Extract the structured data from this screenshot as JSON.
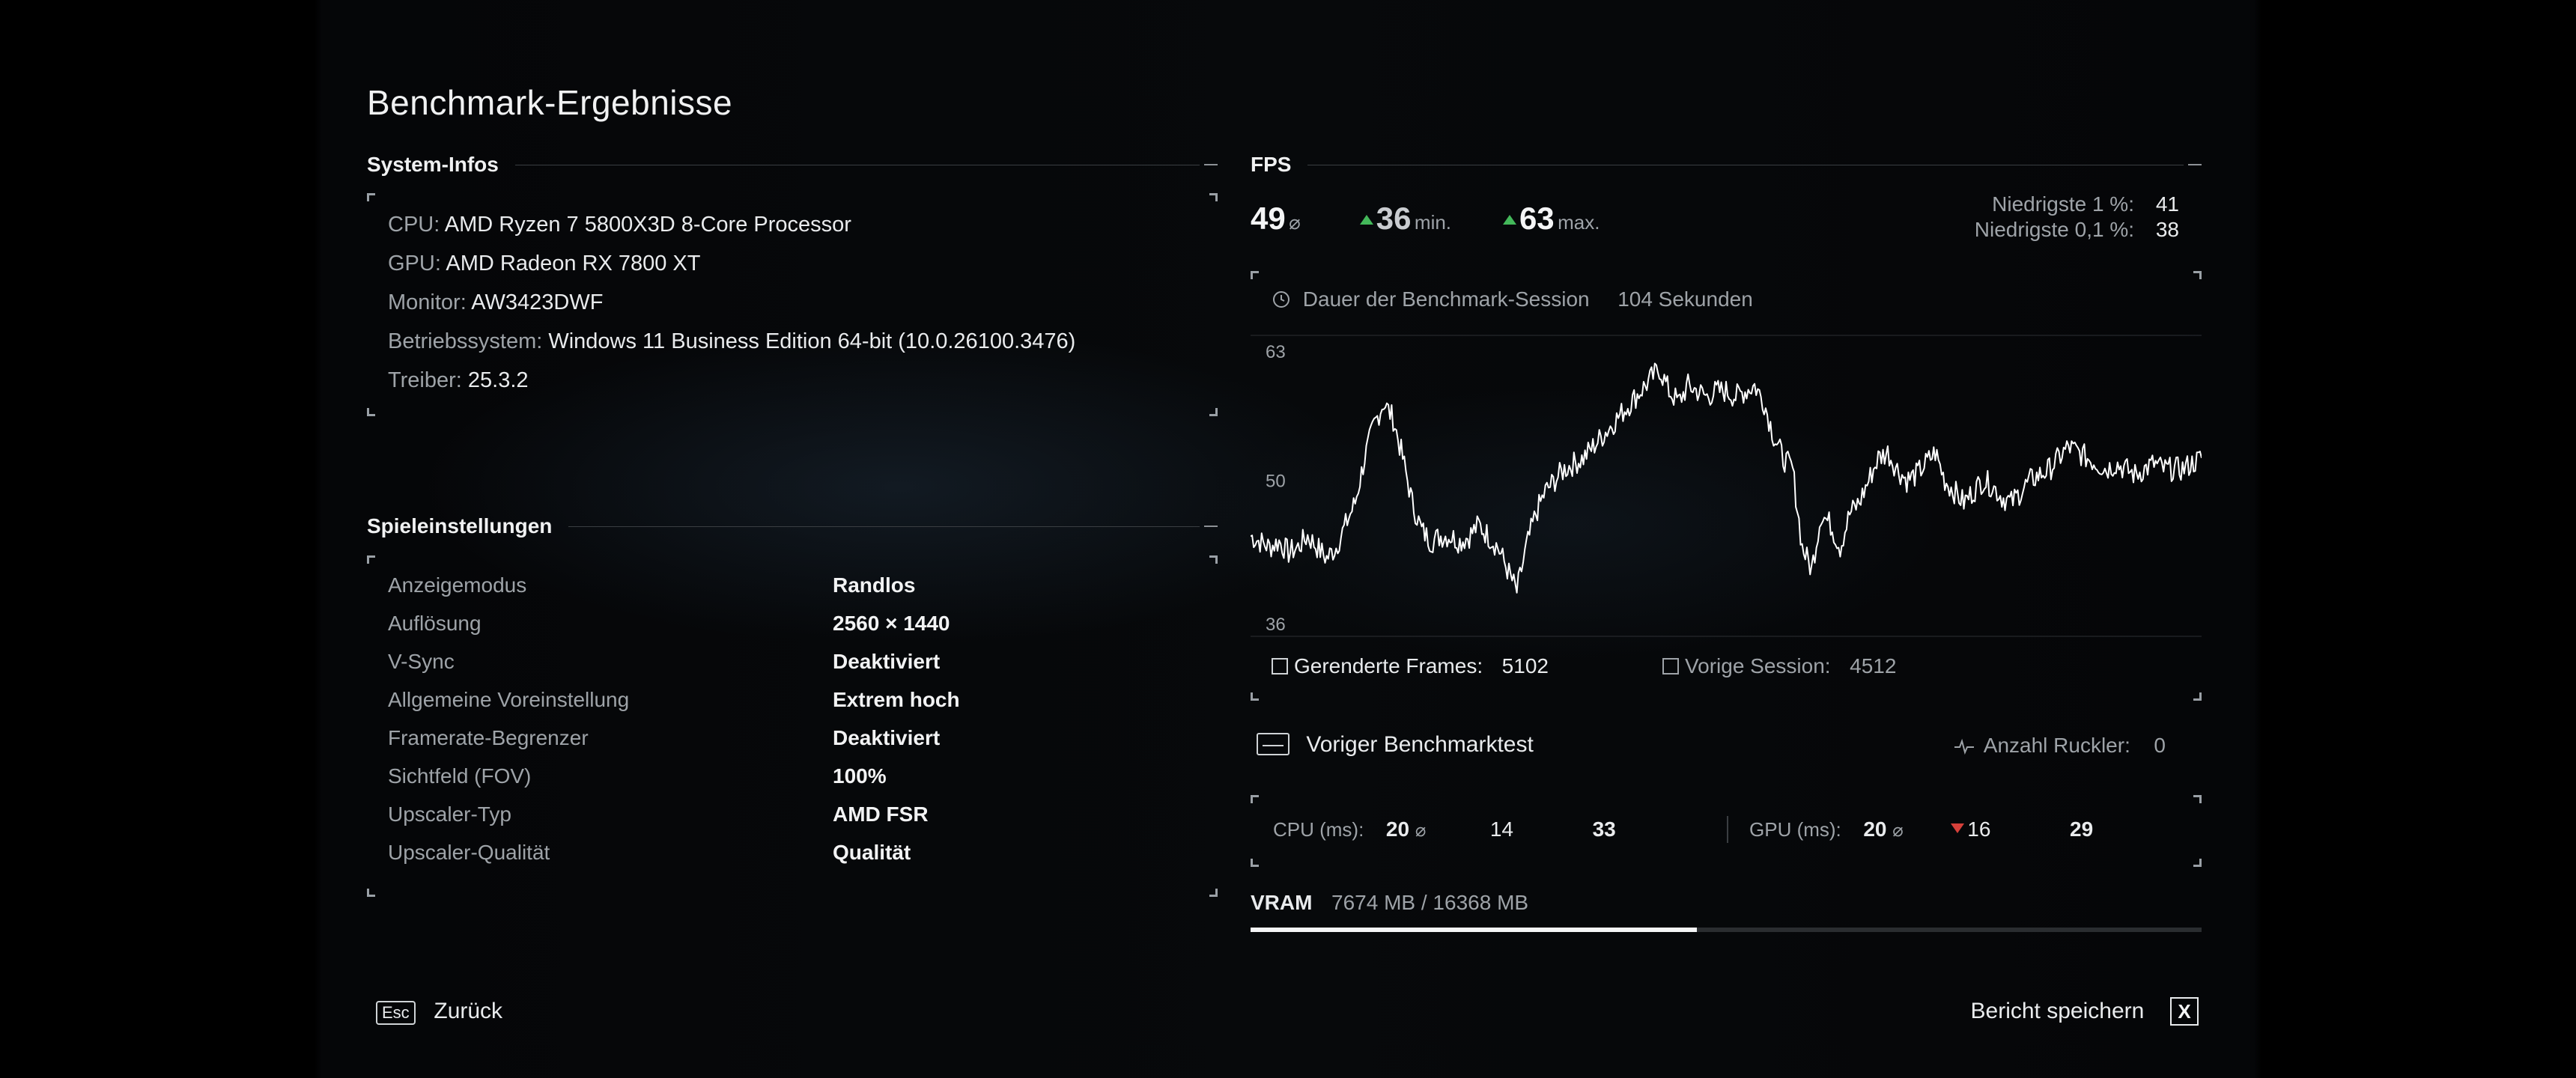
{
  "page_title": "Benchmark-Ergebnisse",
  "system": {
    "heading": "System-Infos",
    "rows": [
      {
        "key": "CPU:",
        "value": "AMD Ryzen 7 5800X3D 8-Core Processor"
      },
      {
        "key": "GPU:",
        "value": "AMD Radeon RX 7800 XT"
      },
      {
        "key": "Monitor:",
        "value": "AW3423DWF"
      },
      {
        "key": "Betriebssystem:",
        "value": "Windows 11 Business Edition 64-bit (10.0.26100.3476)"
      },
      {
        "key": "Treiber:",
        "value": "25.3.2"
      }
    ]
  },
  "settings": {
    "heading": "Spieleinstellungen",
    "rows": [
      {
        "key": "Anzeigemodus",
        "value": "Randlos"
      },
      {
        "key": "Auflösung",
        "value": "2560 × 1440"
      },
      {
        "key": "V-Sync",
        "value": "Deaktiviert"
      },
      {
        "key": "Allgemeine Voreinstellung",
        "value": "Extrem hoch"
      },
      {
        "key": "Framerate-Begrenzer",
        "value": "Deaktiviert"
      },
      {
        "key": "Sichtfeld (FOV)",
        "value": "100%"
      },
      {
        "key": "Upscaler-Typ",
        "value": "AMD FSR"
      },
      {
        "key": "Upscaler-Qualität",
        "value": "Qualität"
      }
    ]
  },
  "fps": {
    "heading": "FPS",
    "avg": "49",
    "avg_unit": "⌀",
    "min": "36",
    "min_unit": "min.",
    "max": "63",
    "max_unit": "max.",
    "low1_label": "Niedrigste 1 %:",
    "low1_value": "41",
    "low01_label": "Niedrigste 0,1 %:",
    "low01_value": "38",
    "duration_label": "Dauer der Benchmark-Session",
    "duration_value": "104 Sekunden",
    "rendered_label": "Gerenderte Frames:",
    "rendered_value": "5102",
    "prev_session_label": "Vorige Session:",
    "prev_session_value": "4512",
    "colors": {
      "accent_up": "#43b85a",
      "accent_down": "#d6403a",
      "line": "#ffffff"
    }
  },
  "previous": {
    "label": "Voriger Benchmarktest",
    "stutter_label": "Anzahl Ruckler:",
    "stutter_value": "0"
  },
  "frametimes": {
    "cpu_label": "CPU (ms):",
    "cpu_avg": "20",
    "cpu_avg_unit": "⌀",
    "cpu_min": "14",
    "cpu_max": "33",
    "gpu_label": "GPU (ms):",
    "gpu_avg": "20",
    "gpu_avg_unit": "⌀",
    "gpu_min": "16",
    "gpu_max": "29"
  },
  "vram": {
    "label": "VRAM",
    "value": "7674 MB / 16368 MB",
    "used_fraction": 0.4689
  },
  "footer": {
    "back_key": "Esc",
    "back_label": "Zurück",
    "save_label": "Bericht speichern",
    "save_key": "X"
  },
  "chart_data": {
    "type": "line",
    "title": "",
    "xlabel": "",
    "ylabel": "",
    "ylim": [
      36,
      63
    ],
    "y_ticks": [
      63,
      50,
      36
    ],
    "grid": true,
    "x_range_seconds": [
      0,
      104
    ],
    "series": [
      {
        "values": [
          45,
          44.5,
          44,
          44.5,
          43.5,
          44,
          45,
          44,
          43,
          44,
          46,
          48,
          52,
          55,
          57,
          55.5,
          52,
          48,
          45.5,
          44.5,
          45,
          45,
          44.5,
          45,
          46,
          45,
          44,
          42,
          40,
          44,
          47,
          49,
          50,
          51,
          51.5,
          52,
          53,
          54,
          55,
          56,
          57,
          58,
          59,
          60,
          58,
          57,
          58.5,
          58,
          57.5,
          58,
          58,
          57.5,
          58,
          58.5,
          57,
          54,
          52,
          51,
          44,
          42,
          47,
          46,
          44,
          47,
          48,
          50,
          52,
          52.5,
          51,
          50,
          50.5,
          51.5,
          52.5,
          50,
          49,
          48,
          49,
          50,
          49.5,
          48.5,
          48,
          49,
          50,
          50.5,
          51,
          52,
          53,
          52.5,
          52,
          51.5,
          51,
          51.5,
          51,
          50.5,
          51,
          51.5,
          51,
          51,
          51,
          51.5,
          52
        ]
      }
    ]
  }
}
